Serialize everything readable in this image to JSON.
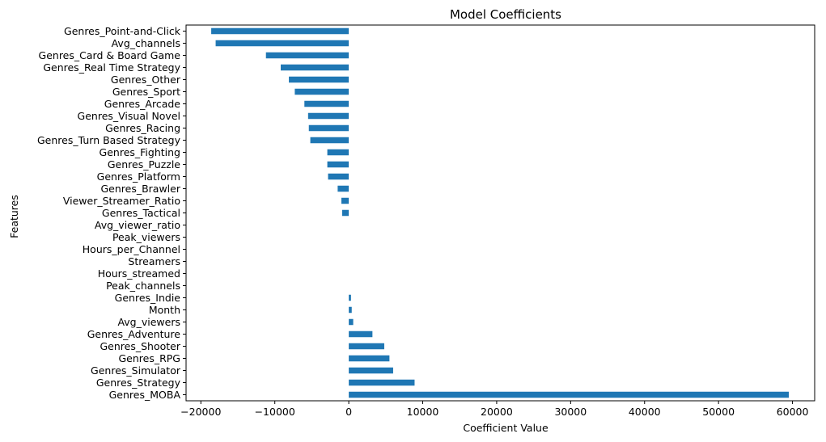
{
  "chart_data": {
    "type": "bar",
    "orientation": "horizontal",
    "title": "Model Coefficients",
    "xlabel": "Coefficient Value",
    "ylabel": "Features",
    "xlim": [
      -22000,
      63000
    ],
    "xticks": [
      -20000,
      -10000,
      0,
      10000,
      20000,
      30000,
      40000,
      50000,
      60000
    ],
    "xtick_labels": [
      "−20000",
      "−10000",
      "0",
      "10000",
      "20000",
      "30000",
      "40000",
      "50000",
      "60000"
    ],
    "grid": false,
    "legend": "none",
    "bar_color": "#1f77b4",
    "categories": [
      "Genres_Point-and-Click",
      "Avg_channels",
      "Genres_Card & Board Game",
      "Genres_Real Time Strategy",
      "Genres_Other",
      "Genres_Sport",
      "Genres_Arcade",
      "Genres_Visual Novel",
      "Genres_Racing",
      "Genres_Turn Based Strategy",
      "Genres_Fighting",
      "Genres_Puzzle",
      "Genres_Platform",
      "Genres_Brawler",
      "Viewer_Streamer_Ratio",
      "Genres_Tactical",
      "Avg_viewer_ratio",
      "Peak_viewers",
      "Hours_per_Channel",
      "Streamers",
      "Hours_streamed",
      "Peak_channels",
      "Genres_Indie",
      "Month",
      "Avg_viewers",
      "Genres_Adventure",
      "Genres_Shooter",
      "Genres_RPG",
      "Genres_Simulator",
      "Genres_Strategy",
      "Genres_MOBA"
    ],
    "values": [
      -18600,
      -18000,
      -11200,
      -9200,
      -8100,
      -7300,
      -6000,
      -5500,
      -5400,
      -5200,
      -2900,
      -2900,
      -2800,
      -1500,
      -1000,
      -900,
      0,
      0,
      0,
      0,
      0,
      0,
      300,
      400,
      600,
      3200,
      4800,
      5500,
      6000,
      8900,
      59500
    ]
  }
}
